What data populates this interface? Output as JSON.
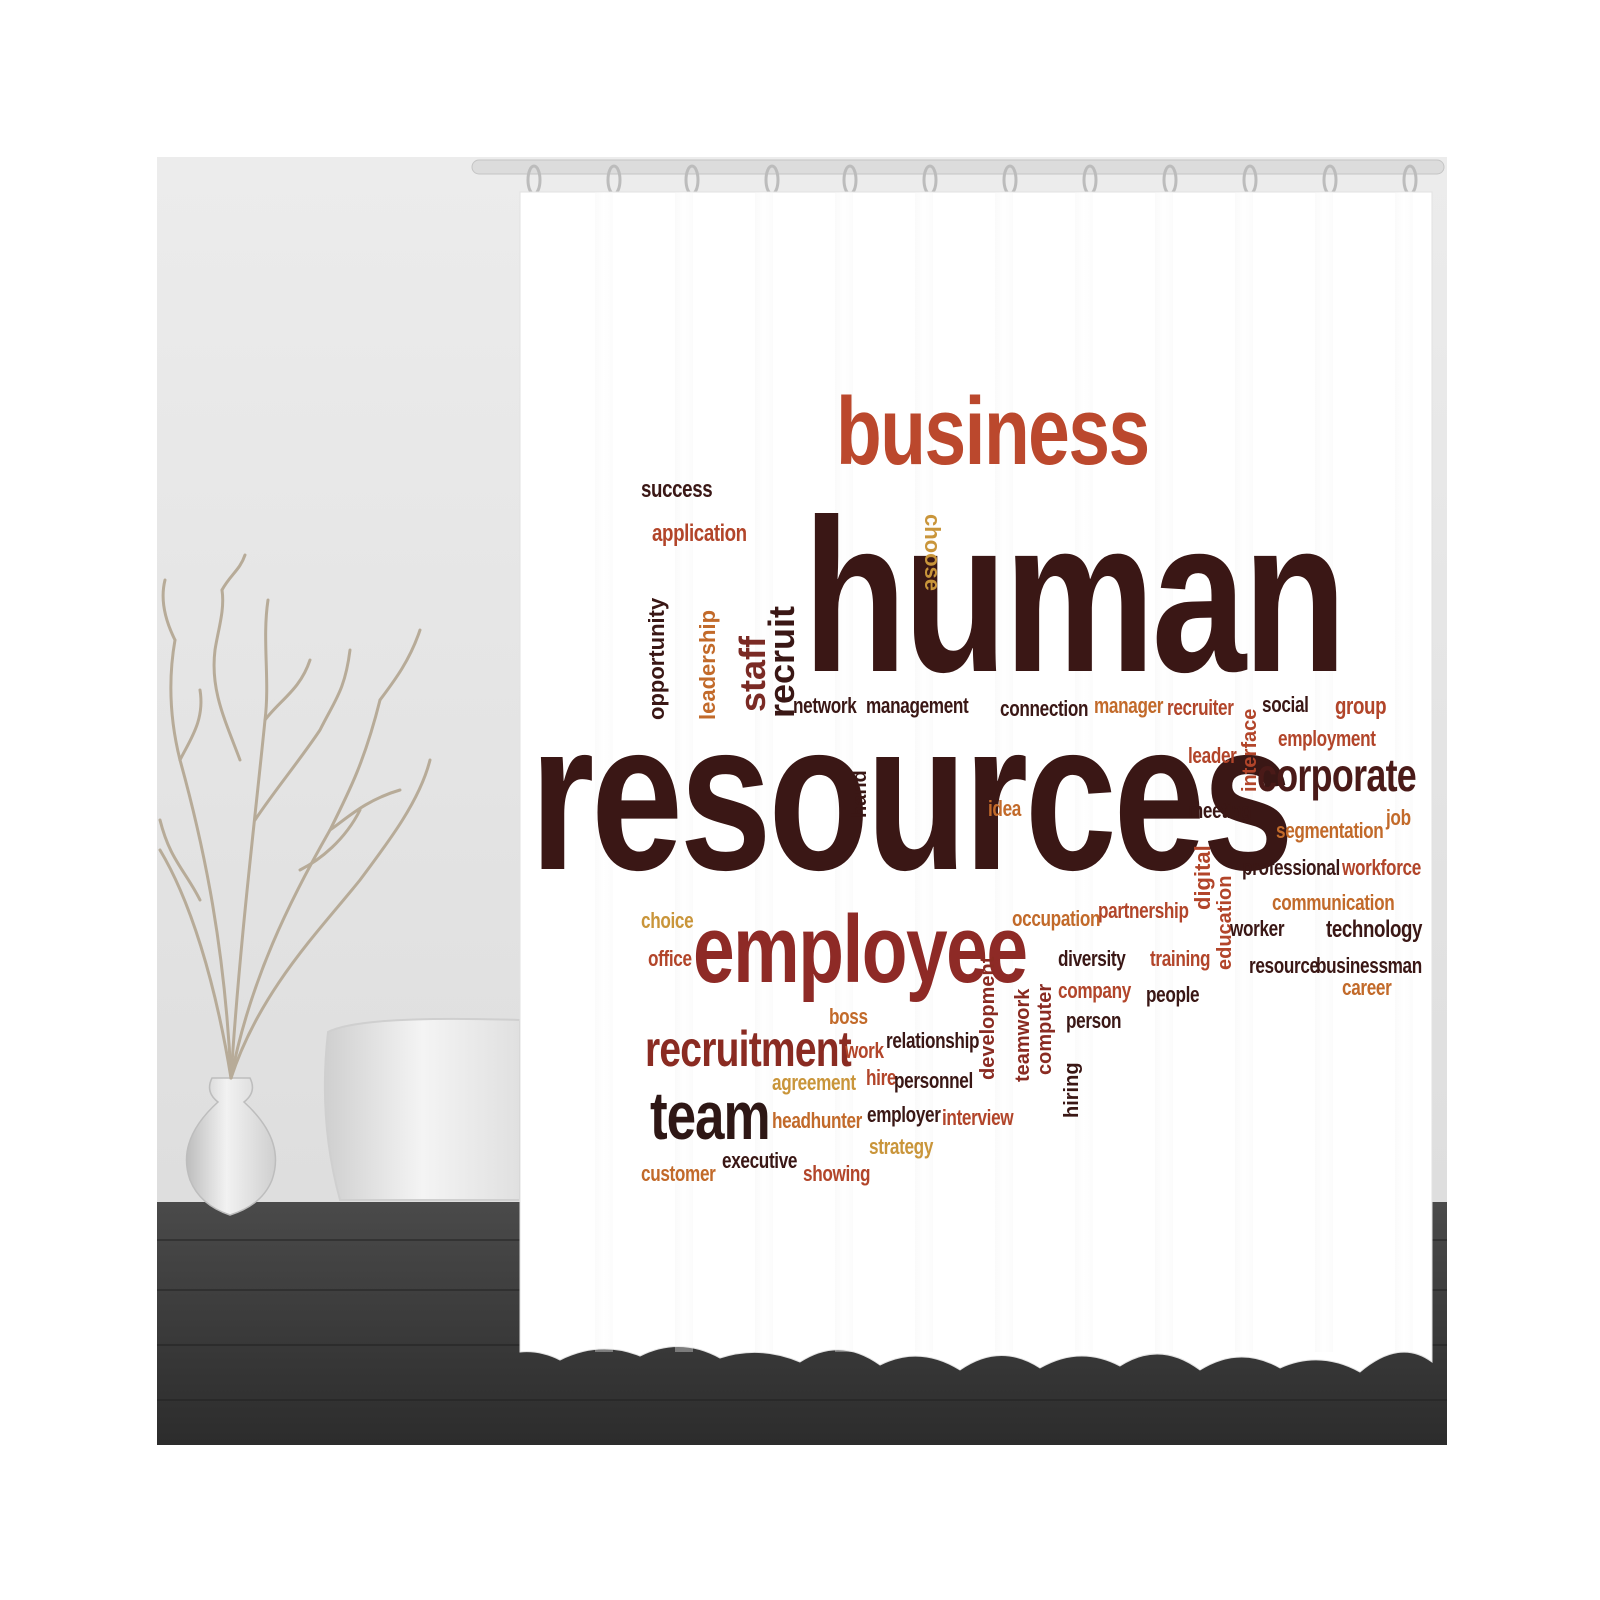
{
  "colors": {
    "wall": "#e4e4e4",
    "floor": "#3a3a3a",
    "curtain": "#ffffff",
    "rod": "#dcdcdc",
    "dark": "#3b1a18",
    "red": "#b8452a",
    "brown": "#8a2b22",
    "orange": "#c26a2a",
    "gold": "#c9953a"
  },
  "scene_objects": [
    "vase",
    "dried-branches",
    "bathtub",
    "curtain-rod",
    "curtain-rings",
    "wood-floor"
  ],
  "words": {
    "business": "business",
    "human": "human",
    "resources": "resources",
    "employee": "employee",
    "corporate": "corporate",
    "recruitment": "recruitment",
    "team": "team",
    "success": "success",
    "application": "application",
    "opportunity": "opportunity",
    "leadership": "leadership",
    "staff": "staff",
    "recruit": "recruit",
    "choose": "choose",
    "network": "network",
    "management": "management",
    "connection": "connection",
    "manager": "manager",
    "recruiter": "recruiter",
    "interface": "interface",
    "social": "social",
    "group": "group",
    "employment": "employment",
    "leader": "leader",
    "hand": "hand",
    "idea": "idea",
    "meeting": "meeting",
    "segmentation": "segmentation",
    "job": "job",
    "digital": "digital",
    "education": "education",
    "professional": "professional",
    "workforce": "workforce",
    "communication": "communication",
    "choice": "choice",
    "office": "office",
    "development": "development",
    "occupation": "occupation",
    "partnership": "partnership",
    "worker": "worker",
    "technology": "technology",
    "teamwork": "teamwork",
    "computer": "computer",
    "diversity": "diversity",
    "training": "training",
    "resource": "resource",
    "businessman": "businessman",
    "company": "company",
    "people": "people",
    "career": "career",
    "boss": "boss",
    "person": "person",
    "work": "work",
    "relationship": "relationship",
    "hiring": "hiring",
    "agreement": "agreement",
    "hire": "hire",
    "personnel": "personnel",
    "headhunter": "headhunter",
    "employer": "employer",
    "interview": "interview",
    "strategy": "strategy",
    "customer": "customer",
    "executive": "executive",
    "showing": "showing"
  }
}
